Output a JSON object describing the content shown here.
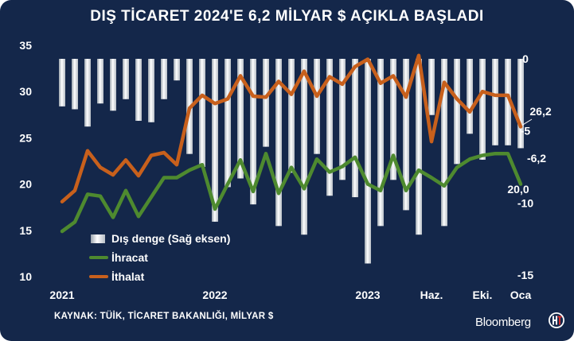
{
  "title": "DIŞ TİCARET 2024'E 6,2 MİLYAR $ AÇIKLA BAŞLADI",
  "source": "KAYNAK: TÜİK, TİCARET BAKANLIĞI, MİLYAR $",
  "brand": "Bloomberg",
  "colors": {
    "background": "#14274a",
    "export": "#4e8a2f",
    "import": "#c8601c",
    "balance": "#e8e9ec"
  },
  "chart_data": {
    "type": "bar+line",
    "x_labels": [
      "2021",
      "2022",
      "2023",
      "Haz.",
      "Eki.",
      "Oca"
    ],
    "x_label_index": [
      0,
      12,
      24,
      29,
      33,
      36
    ],
    "ylim_left": [
      10,
      35
    ],
    "yticks_left": [
      "10",
      "15",
      "20",
      "25",
      "30",
      "35"
    ],
    "ylim_right": [
      -15,
      0
    ],
    "yticks_right": [
      "-15",
      "-10",
      "-5",
      "0"
    ],
    "series": [
      {
        "name": "İhracat",
        "axis": "left",
        "type": "line",
        "values": [
          14.9,
          15.9,
          18.9,
          18.7,
          16.4,
          19.3,
          16.5,
          18.6,
          20.7,
          20.7,
          21.5,
          22.1,
          17.3,
          20.0,
          22.6,
          19.2,
          23.3,
          19.0,
          21.8,
          19.5,
          22.7,
          21.3,
          21.9,
          22.9,
          20.0,
          19.3,
          23.1,
          19.3,
          21.5,
          20.7,
          19.8,
          21.8,
          22.7,
          23.1,
          23.3,
          23.3,
          20.0
        ]
      },
      {
        "name": "İthalat",
        "axis": "left",
        "type": "line",
        "values": [
          18.1,
          19.3,
          23.6,
          21.8,
          21.0,
          22.6,
          20.9,
          23.1,
          23.4,
          22.1,
          28.2,
          29.6,
          28.7,
          29.2,
          31.7,
          29.5,
          29.4,
          31.1,
          29.7,
          32.2,
          29.5,
          31.6,
          30.8,
          32.7,
          33.5,
          30.9,
          31.7,
          29.4,
          33.9,
          24.6,
          31.0,
          29.2,
          27.8,
          30.0,
          29.6,
          29.6,
          26.2
        ]
      },
      {
        "name": "Dış denge (Sağ eksen)",
        "axis": "right",
        "type": "bar",
        "values": [
          -3.3,
          -3.5,
          -4.7,
          -3.1,
          -3.6,
          -2.8,
          -4.3,
          -4.4,
          -2.8,
          -1.5,
          -6.6,
          -7.5,
          -11.3,
          -8.9,
          -8.3,
          -10.1,
          -6.1,
          -11.6,
          -7.9,
          -12.2,
          -6.6,
          -9.5,
          -8.4,
          -9.6,
          -14.2,
          -11.6,
          -8.4,
          -10.5,
          -12.2,
          -3.9,
          -11.6,
          -7.3,
          -5.2,
          -7.0,
          -6.0,
          -6.0,
          -6.2
        ]
      }
    ],
    "annotations": [
      "26,2",
      "-6,2",
      "20,0"
    ]
  }
}
